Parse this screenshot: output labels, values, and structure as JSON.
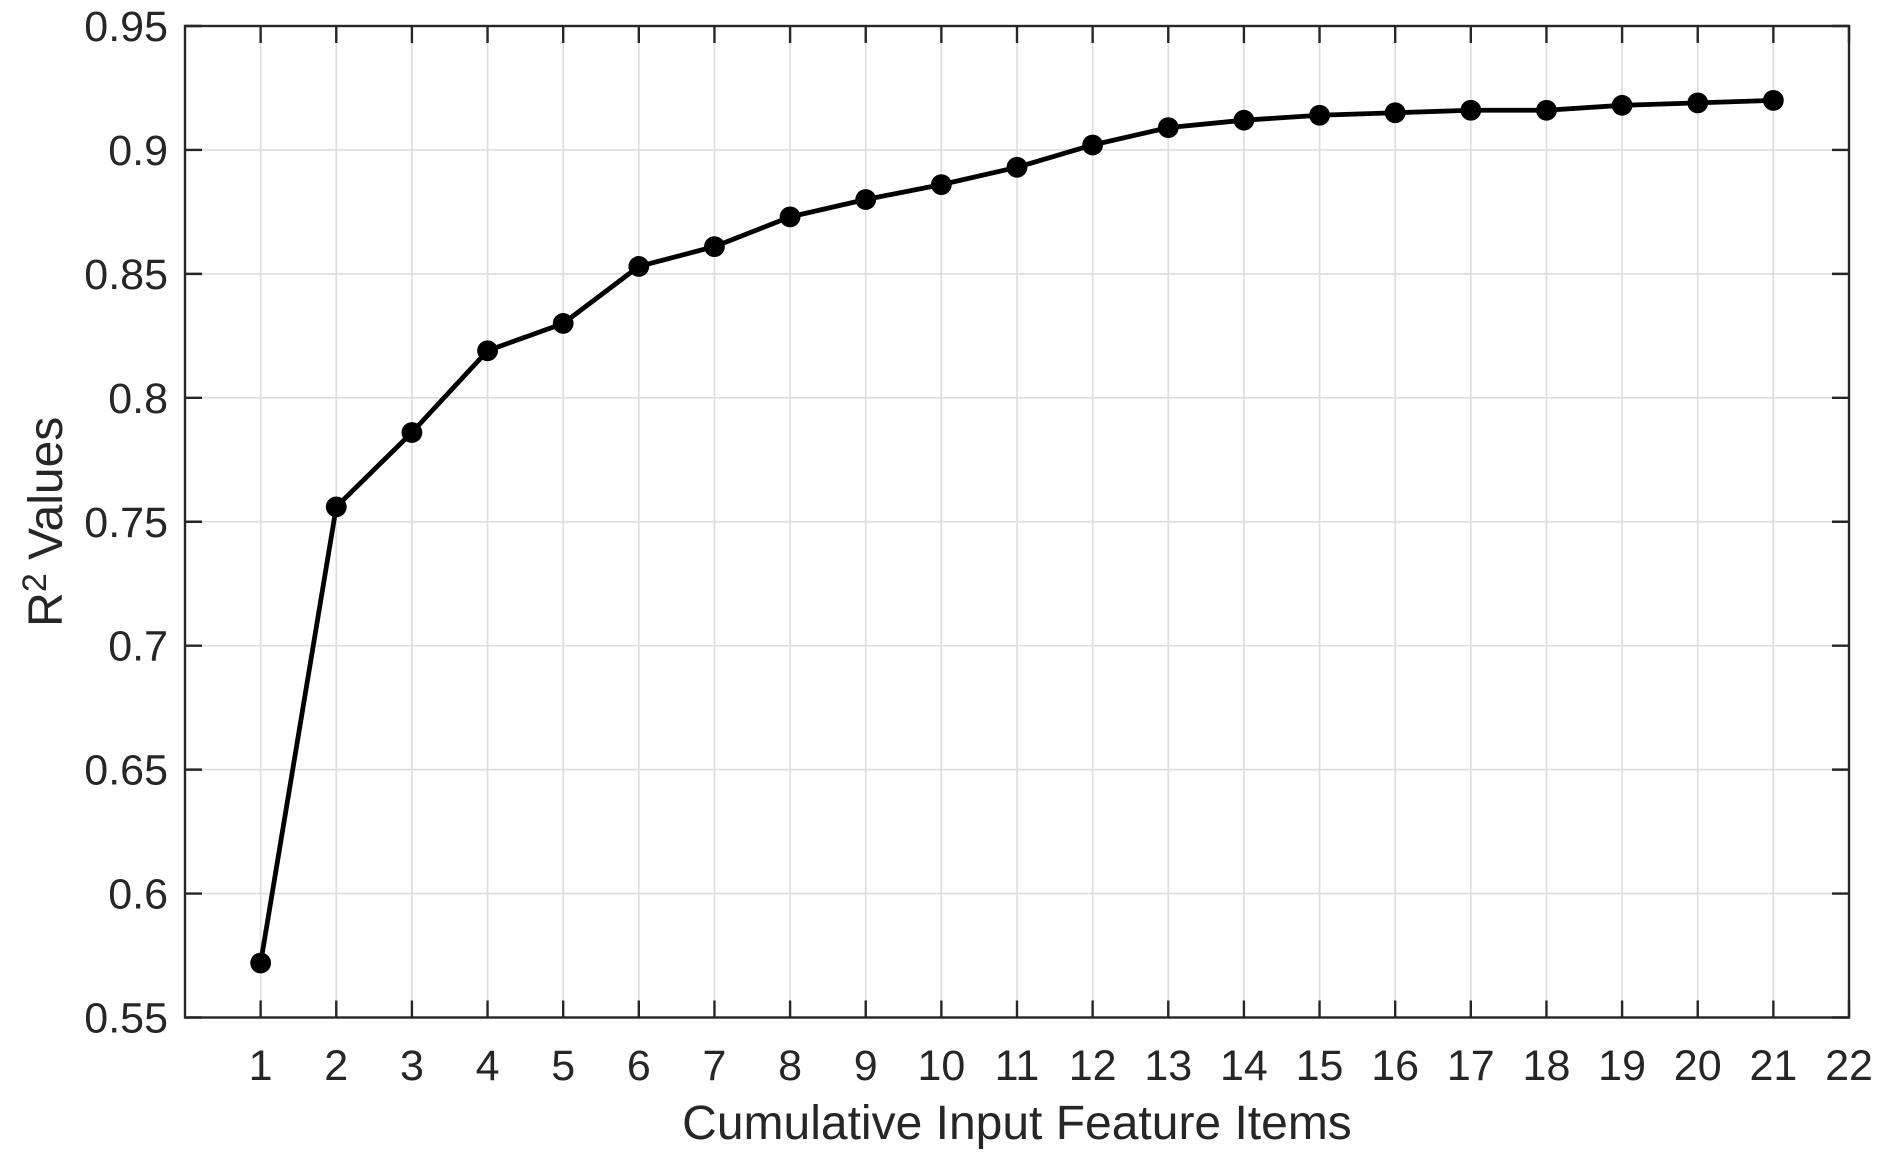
{
  "figure": {
    "background": "#ffffff"
  },
  "chart_data": {
    "type": "line",
    "title": "",
    "xlabel": "Cumulative Input Feature Items",
    "ylabel": {
      "base": "R",
      "superscript": "2",
      "rest": " Values"
    },
    "x": [
      1,
      2,
      3,
      4,
      5,
      6,
      7,
      8,
      9,
      10,
      11,
      12,
      13,
      14,
      15,
      16,
      17,
      18,
      19,
      20,
      21
    ],
    "y": [
      0.572,
      0.756,
      0.786,
      0.819,
      0.83,
      0.853,
      0.861,
      0.873,
      0.88,
      0.886,
      0.893,
      0.902,
      0.909,
      0.912,
      0.914,
      0.915,
      0.916,
      0.916,
      0.918,
      0.919,
      0.92
    ],
    "xlim": [
      0,
      22
    ],
    "ylim": [
      0.55,
      0.95
    ],
    "xtick_values": [
      1,
      2,
      3,
      4,
      5,
      6,
      7,
      8,
      9,
      10,
      11,
      12,
      13,
      14,
      15,
      16,
      17,
      18,
      19,
      20,
      21,
      22
    ],
    "xtick_labels": [
      "1",
      "2",
      "3",
      "4",
      "5",
      "6",
      "7",
      "8",
      "9",
      "10",
      "11",
      "12",
      "13",
      "14",
      "15",
      "16",
      "17",
      "18",
      "19",
      "20",
      "21",
      "22"
    ],
    "ytick_values": [
      0.55,
      0.6,
      0.65,
      0.7,
      0.75,
      0.8,
      0.85,
      0.9,
      0.95
    ],
    "ytick_labels": [
      "0.55",
      "0.6",
      "0.65",
      "0.7",
      "0.75",
      "0.8",
      "0.85",
      "0.9",
      "0.95"
    ],
    "grid": true,
    "legend": null,
    "line_color": "#000000",
    "marker": "filled-circle",
    "marker_color": "#000000",
    "grid_color": "#dedede",
    "axis_color": "#262626",
    "text_color": "#262626"
  }
}
